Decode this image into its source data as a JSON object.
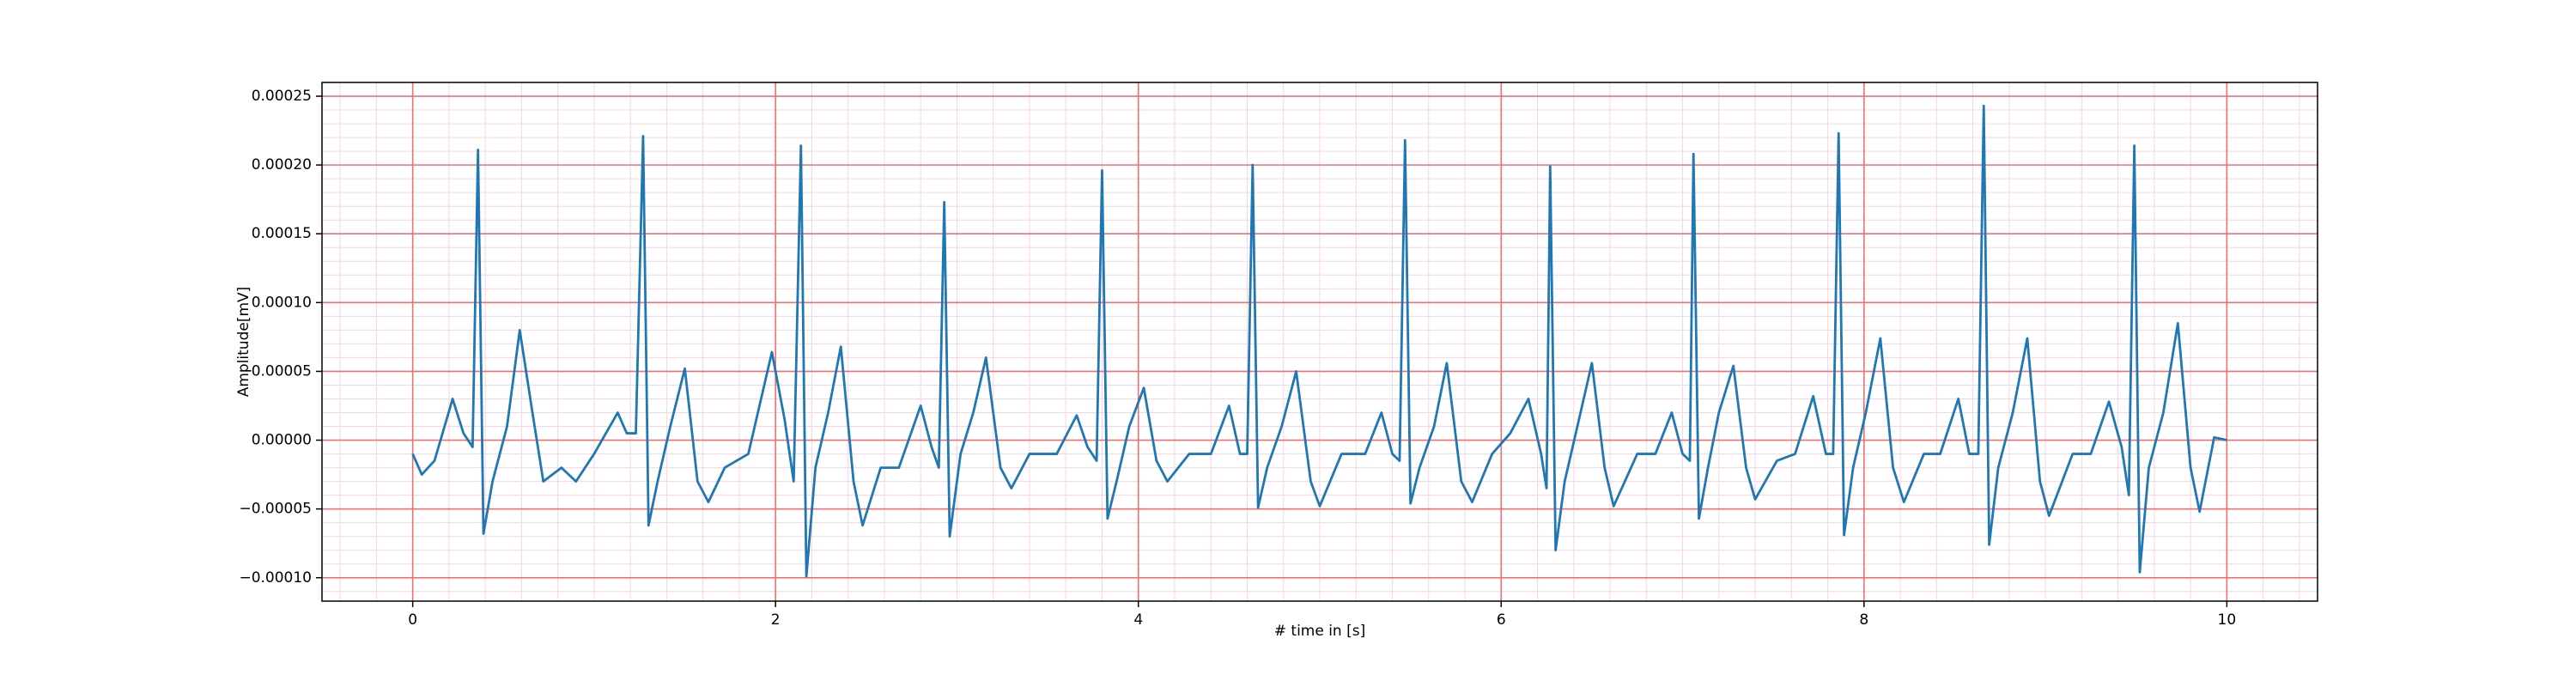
{
  "chart_data": {
    "type": "line",
    "xlabel": "# time in [s]",
    "ylabel": "Amplitude[mV]",
    "xlim": [
      -0.5,
      10.5
    ],
    "xticks": [
      0,
      2,
      4,
      6,
      8,
      10
    ],
    "ylim": [
      -0.000117,
      0.00026
    ],
    "yticks": [
      {
        "value": -0.0001,
        "label": "−0.00010"
      },
      {
        "value": -5e-05,
        "label": "−0.00005"
      },
      {
        "value": 0,
        "label": "0.00000"
      },
      {
        "value": 5e-05,
        "label": "0.00005"
      },
      {
        "value": 0.0001,
        "label": "0.00010"
      },
      {
        "value": 0.00015,
        "label": "0.00015"
      },
      {
        "value": 0.0002,
        "label": "0.00020"
      },
      {
        "value": 0.00025,
        "label": "0.00025"
      }
    ],
    "grid": true,
    "grid_color": "#f07070",
    "minor_grid": {
      "x": 0.2,
      "y": 1e-05,
      "color": "#fbd3e3"
    },
    "series": [
      {
        "color": "#1f77b4",
        "x": [
          0,
          0.05,
          0.12,
          0.22,
          0.28,
          0.33,
          0.36,
          0.39,
          0.44,
          0.52,
          0.59,
          0.66,
          0.72,
          0.82,
          0.9,
          1.0,
          1.13,
          1.18,
          1.23,
          1.27,
          1.3,
          1.35,
          1.42,
          1.5,
          1.57,
          1.63,
          1.72,
          1.85,
          1.98,
          2.05,
          2.1,
          2.14,
          2.17,
          2.22,
          2.29,
          2.36,
          2.43,
          2.48,
          2.58,
          2.68,
          2.8,
          2.86,
          2.9,
          2.93,
          2.96,
          3.02,
          3.09,
          3.16,
          3.24,
          3.3,
          3.4,
          3.55,
          3.66,
          3.72,
          3.77,
          3.8,
          3.83,
          3.88,
          3.95,
          4.03,
          4.1,
          4.16,
          4.28,
          4.4,
          4.5,
          4.56,
          4.6,
          4.63,
          4.66,
          4.71,
          4.79,
          4.87,
          4.95,
          5.0,
          5.12,
          5.25,
          5.34,
          5.4,
          5.44,
          5.47,
          5.5,
          5.55,
          5.63,
          5.7,
          5.78,
          5.84,
          5.95,
          6.05,
          6.15,
          6.22,
          6.25,
          6.27,
          6.3,
          6.35,
          6.42,
          6.5,
          6.57,
          6.62,
          6.75,
          6.85,
          6.94,
          7.0,
          7.04,
          7.06,
          7.09,
          7.14,
          7.2,
          7.28,
          7.35,
          7.4,
          7.52,
          7.62,
          7.72,
          7.79,
          7.83,
          7.86,
          7.89,
          7.94,
          8.01,
          8.09,
          8.16,
          8.22,
          8.33,
          8.42,
          8.52,
          8.58,
          8.63,
          8.66,
          8.69,
          8.74,
          8.82,
          8.9,
          8.97,
          9.02,
          9.15,
          9.25,
          9.35,
          9.42,
          9.46,
          9.49,
          9.52,
          9.57,
          9.65,
          9.73,
          9.8,
          9.85,
          9.93,
          10.0
        ],
        "values": [
          -1e-05,
          -2.5e-05,
          -1.5e-05,
          3e-05,
          5e-06,
          -5e-06,
          0.000211,
          -6.8e-05,
          -3e-05,
          1e-05,
          8e-05,
          2e-05,
          -3e-05,
          -2e-05,
          -3e-05,
          -1e-05,
          2e-05,
          5e-06,
          5e-06,
          0.000221,
          -6.2e-05,
          -3e-05,
          1e-05,
          5.2e-05,
          -3e-05,
          -4.5e-05,
          -2e-05,
          -1e-05,
          6.4e-05,
          1.5e-05,
          -3e-05,
          0.000214,
          -9.9e-05,
          -2e-05,
          2e-05,
          6.8e-05,
          -3e-05,
          -6.2e-05,
          -2e-05,
          -2e-05,
          2.5e-05,
          -5e-06,
          -2e-05,
          0.000173,
          -7e-05,
          -1e-05,
          2e-05,
          6e-05,
          -2e-05,
          -3.5e-05,
          -1e-05,
          -1e-05,
          1.8e-05,
          -5e-06,
          -1.5e-05,
          0.000196,
          -5.7e-05,
          -3e-05,
          1e-05,
          3.8e-05,
          -1.5e-05,
          -3e-05,
          -1e-05,
          -1e-05,
          2.5e-05,
          -1e-05,
          -1e-05,
          0.0002,
          -4.9e-05,
          -2e-05,
          1e-05,
          5e-05,
          -3e-05,
          -4.8e-05,
          -1e-05,
          -1e-05,
          2e-05,
          -1e-05,
          -1.5e-05,
          0.000218,
          -4.6e-05,
          -2e-05,
          1e-05,
          5.6e-05,
          -3e-05,
          -4.5e-05,
          -1e-05,
          5e-06,
          3e-05,
          -1e-05,
          -3.5e-05,
          0.000199,
          -8e-05,
          -3e-05,
          1e-05,
          5.6e-05,
          -2e-05,
          -4.8e-05,
          -1e-05,
          -1e-05,
          2e-05,
          -1e-05,
          -1.5e-05,
          0.000208,
          -5.7e-05,
          -2e-05,
          2e-05,
          5.4e-05,
          -2e-05,
          -4.3e-05,
          -1.5e-05,
          -1e-05,
          3.2e-05,
          -1e-05,
          -1e-05,
          0.000223,
          -6.9e-05,
          -2e-05,
          2e-05,
          7.4e-05,
          -2e-05,
          -4.5e-05,
          -1e-05,
          -1e-05,
          3e-05,
          -1e-05,
          -1e-05,
          0.000243,
          -7.6e-05,
          -2e-05,
          2e-05,
          7.4e-05,
          -3e-05,
          -5.5e-05,
          -1e-05,
          -1e-05,
          2.8e-05,
          -5e-06,
          -4e-05,
          0.000214,
          -9.6e-05,
          -2e-05,
          2e-05,
          8.5e-05,
          -2e-05,
          -5.2e-05,
          2e-06,
          0
        ]
      }
    ]
  }
}
